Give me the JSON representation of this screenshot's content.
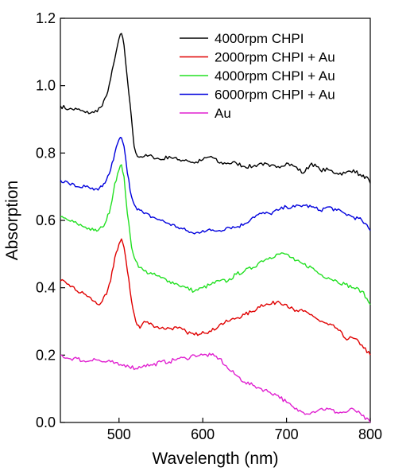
{
  "chart_data": {
    "type": "line",
    "title": "",
    "xlabel": "Wavelength (nm)",
    "ylabel": "Absorption",
    "xlim": [
      430,
      800
    ],
    "ylim": [
      0.0,
      1.2
    ],
    "xticks": [
      500,
      600,
      700,
      800
    ],
    "xtick_labels": [
      "500",
      "600",
      "700",
      "800"
    ],
    "yticks": [
      0.0,
      0.2,
      0.4,
      0.6,
      0.8,
      1.0,
      1.2
    ],
    "ytick_labels": [
      "0.0",
      "0.2",
      "0.4",
      "0.6",
      "0.8",
      "1.0",
      "1.2"
    ],
    "grid": false,
    "legend": "top-right",
    "series": [
      {
        "name": "4000rpm CHPI",
        "color": "#000000",
        "x": [
          430,
          440,
          450,
          460,
          470,
          480,
          485,
          490,
          495,
          500,
          503,
          506,
          510,
          515,
          518,
          522,
          530,
          540,
          550,
          560,
          570,
          580,
          590,
          600,
          610,
          620,
          630,
          640,
          650,
          660,
          670,
          680,
          690,
          700,
          710,
          720,
          730,
          740,
          750,
          760,
          770,
          780,
          790,
          795,
          800
        ],
        "y": [
          0.94,
          0.93,
          0.93,
          0.92,
          0.92,
          0.94,
          0.97,
          1.02,
          1.08,
          1.14,
          1.155,
          1.12,
          1.02,
          0.9,
          0.82,
          0.79,
          0.79,
          0.79,
          0.78,
          0.79,
          0.78,
          0.78,
          0.77,
          0.78,
          0.79,
          0.77,
          0.77,
          0.77,
          0.76,
          0.76,
          0.77,
          0.76,
          0.76,
          0.77,
          0.76,
          0.74,
          0.77,
          0.75,
          0.75,
          0.74,
          0.74,
          0.75,
          0.73,
          0.73,
          0.71
        ]
      },
      {
        "name": "2000rpm CHPI + Au",
        "color": "#e00000",
        "x": [
          430,
          440,
          450,
          460,
          470,
          475,
          480,
          485,
          490,
          495,
          500,
          503,
          506,
          510,
          515,
          520,
          525,
          530,
          540,
          550,
          560,
          570,
          580,
          590,
          600,
          610,
          620,
          630,
          640,
          650,
          660,
          670,
          680,
          690,
          700,
          710,
          720,
          730,
          740,
          750,
          760,
          770,
          780,
          790,
          800
        ],
        "y": [
          0.42,
          0.41,
          0.39,
          0.38,
          0.36,
          0.35,
          0.36,
          0.38,
          0.42,
          0.49,
          0.53,
          0.545,
          0.52,
          0.45,
          0.36,
          0.3,
          0.28,
          0.3,
          0.29,
          0.28,
          0.28,
          0.28,
          0.27,
          0.26,
          0.27,
          0.27,
          0.29,
          0.3,
          0.31,
          0.32,
          0.33,
          0.35,
          0.35,
          0.36,
          0.35,
          0.33,
          0.33,
          0.32,
          0.3,
          0.29,
          0.28,
          0.25,
          0.25,
          0.23,
          0.2
        ]
      },
      {
        "name": "4000rpm CHPI + Au",
        "color": "#22e022",
        "x": [
          430,
          440,
          450,
          460,
          470,
          475,
          480,
          485,
          490,
          495,
          500,
          503,
          506,
          510,
          515,
          520,
          525,
          530,
          540,
          550,
          560,
          570,
          580,
          590,
          600,
          610,
          620,
          630,
          640,
          650,
          660,
          670,
          680,
          690,
          700,
          710,
          720,
          730,
          740,
          750,
          760,
          770,
          780,
          790,
          800
        ],
        "y": [
          0.61,
          0.6,
          0.59,
          0.58,
          0.57,
          0.57,
          0.58,
          0.6,
          0.64,
          0.71,
          0.75,
          0.765,
          0.73,
          0.62,
          0.52,
          0.48,
          0.46,
          0.45,
          0.44,
          0.43,
          0.42,
          0.41,
          0.4,
          0.39,
          0.4,
          0.41,
          0.42,
          0.42,
          0.44,
          0.45,
          0.46,
          0.48,
          0.49,
          0.5,
          0.5,
          0.48,
          0.47,
          0.46,
          0.44,
          0.43,
          0.42,
          0.41,
          0.4,
          0.39,
          0.35
        ]
      },
      {
        "name": "6000rpm CHPI + Au",
        "color": "#0000dd",
        "x": [
          430,
          440,
          450,
          460,
          470,
          475,
          480,
          485,
          490,
          495,
          500,
          503,
          506,
          510,
          515,
          520,
          525,
          530,
          540,
          550,
          560,
          570,
          580,
          590,
          600,
          610,
          620,
          630,
          640,
          650,
          660,
          670,
          680,
          690,
          700,
          710,
          720,
          730,
          740,
          750,
          760,
          770,
          780,
          790,
          800
        ],
        "y": [
          0.72,
          0.71,
          0.7,
          0.7,
          0.69,
          0.69,
          0.7,
          0.72,
          0.75,
          0.8,
          0.84,
          0.845,
          0.82,
          0.74,
          0.67,
          0.64,
          0.63,
          0.62,
          0.61,
          0.6,
          0.59,
          0.58,
          0.57,
          0.56,
          0.57,
          0.57,
          0.57,
          0.58,
          0.58,
          0.59,
          0.61,
          0.62,
          0.62,
          0.63,
          0.64,
          0.64,
          0.645,
          0.64,
          0.63,
          0.64,
          0.63,
          0.62,
          0.61,
          0.6,
          0.57
        ]
      },
      {
        "name": "Au",
        "color": "#e020d0",
        "x": [
          430,
          440,
          450,
          460,
          470,
          480,
          490,
          500,
          510,
          520,
          530,
          540,
          550,
          560,
          570,
          580,
          590,
          600,
          610,
          620,
          630,
          640,
          650,
          660,
          670,
          680,
          690,
          700,
          710,
          720,
          730,
          740,
          750,
          760,
          770,
          780,
          790,
          800
        ],
        "y": [
          0.2,
          0.19,
          0.19,
          0.18,
          0.19,
          0.18,
          0.18,
          0.17,
          0.17,
          0.16,
          0.17,
          0.17,
          0.18,
          0.18,
          0.19,
          0.19,
          0.2,
          0.2,
          0.2,
          0.19,
          0.16,
          0.14,
          0.12,
          0.11,
          0.1,
          0.09,
          0.08,
          0.06,
          0.04,
          0.03,
          0.03,
          0.04,
          0.04,
          0.03,
          0.03,
          0.04,
          0.02,
          0.0
        ]
      }
    ]
  }
}
